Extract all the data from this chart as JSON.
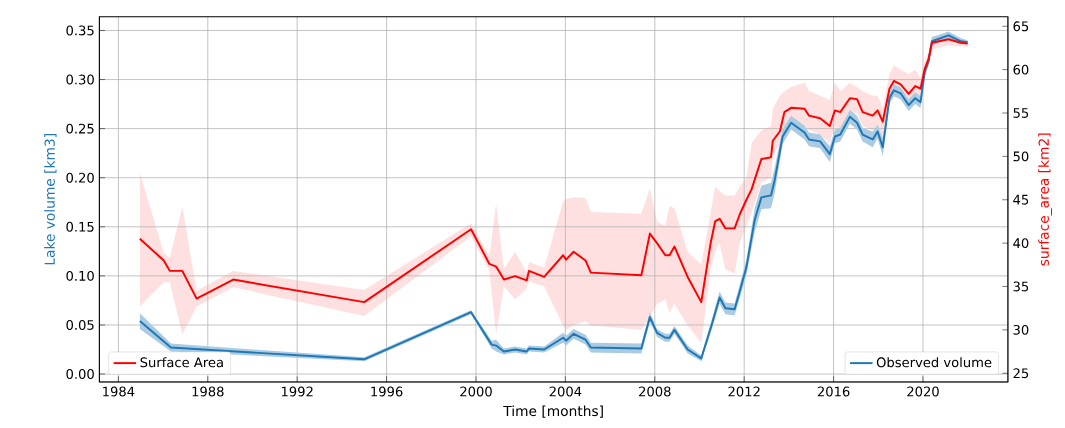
{
  "chart_data": {
    "type": "line",
    "xlabel": "Time [months]",
    "ylabel": "Lake volume [km3]",
    "y2label": "surface_area [km2]",
    "xlim": [
      1983.15,
      2023.8
    ],
    "ylim": [
      -0.008,
      0.364
    ],
    "y2lim": [
      24.0,
      66.1
    ],
    "xticks": [
      1984,
      1988,
      1992,
      1996,
      2000,
      2004,
      2008,
      2012,
      2016,
      2020
    ],
    "yticks": [
      {
        "value": 0,
        "label": "0.00"
      },
      {
        "value": 0.05,
        "label": "0.05"
      },
      {
        "value": 0.1,
        "label": "0.10"
      },
      {
        "value": 0.15,
        "label": "0.15"
      },
      {
        "value": 0.2,
        "label": "0.20"
      },
      {
        "value": 0.25,
        "label": "0.25"
      },
      {
        "value": 0.3,
        "label": "0.30"
      },
      {
        "value": 0.35,
        "label": "0.35"
      }
    ],
    "y2ticks": [
      25,
      30,
      35,
      40,
      45,
      50,
      55,
      60,
      65
    ],
    "grid": true,
    "legend": "bottom",
    "series": [
      {
        "name": "Observed volume",
        "color": "#1f77b4",
        "axis": "y",
        "x": [
          1984.96,
          1986.35,
          1995.0,
          1999.78,
          2000.7,
          2000.9,
          2001.25,
          2001.75,
          2002.27,
          2002.37,
          2003.05,
          2003.9,
          2004.03,
          2004.37,
          2004.9,
          2005.14,
          2007.4,
          2007.78,
          2008.1,
          2008.47,
          2008.66,
          2008.88,
          2009.47,
          2010.08,
          2010.57,
          2010.9,
          2011.16,
          2011.57,
          2011.8,
          2012.1,
          2012.47,
          2012.77,
          2013.2,
          2013.36,
          2013.72,
          2014.1,
          2014.7,
          2014.9,
          2015.4,
          2015.83,
          2016.06,
          2016.3,
          2016.73,
          2017.05,
          2017.3,
          2017.75,
          2017.97,
          2018.2,
          2018.5,
          2018.7,
          2019.0,
          2019.36,
          2019.65,
          2019.89,
          2020.08,
          2020.25,
          2020.4,
          2021.14,
          2021.7,
          2022.0
        ],
        "values": [
          0.054,
          0.027,
          0.015,
          0.063,
          0.03,
          0.029,
          0.023,
          0.025,
          0.023,
          0.026,
          0.025,
          0.037,
          0.034,
          0.041,
          0.035,
          0.027,
          0.026,
          0.058,
          0.042,
          0.037,
          0.037,
          0.045,
          0.025,
          0.016,
          0.052,
          0.078,
          0.067,
          0.066,
          0.084,
          0.109,
          0.157,
          0.18,
          0.182,
          0.197,
          0.242,
          0.256,
          0.246,
          0.239,
          0.237,
          0.224,
          0.242,
          0.244,
          0.262,
          0.256,
          0.244,
          0.239,
          0.247,
          0.231,
          0.281,
          0.289,
          0.286,
          0.274,
          0.281,
          0.277,
          0.308,
          0.319,
          0.339,
          0.345,
          0.339,
          0.338
        ],
        "lower": [
          0.046,
          0.023,
          0.013,
          0.061,
          0.026,
          0.023,
          0.02,
          0.022,
          0.02,
          0.023,
          0.022,
          0.032,
          0.029,
          0.036,
          0.03,
          0.022,
          0.021,
          0.053,
          0.038,
          0.033,
          0.033,
          0.041,
          0.021,
          0.013,
          0.047,
          0.072,
          0.061,
          0.06,
          0.077,
          0.101,
          0.145,
          0.168,
          0.169,
          0.184,
          0.234,
          0.249,
          0.239,
          0.232,
          0.23,
          0.216,
          0.235,
          0.237,
          0.255,
          0.249,
          0.237,
          0.231,
          0.24,
          0.222,
          0.275,
          0.283,
          0.28,
          0.268,
          0.275,
          0.271,
          0.303,
          0.314,
          0.335,
          0.341,
          0.336,
          0.336
        ],
        "upper": [
          0.062,
          0.031,
          0.017,
          0.065,
          0.034,
          0.035,
          0.026,
          0.028,
          0.026,
          0.029,
          0.028,
          0.042,
          0.039,
          0.046,
          0.04,
          0.032,
          0.031,
          0.063,
          0.046,
          0.041,
          0.041,
          0.049,
          0.029,
          0.019,
          0.057,
          0.084,
          0.073,
          0.072,
          0.091,
          0.117,
          0.169,
          0.192,
          0.195,
          0.21,
          0.25,
          0.263,
          0.253,
          0.246,
          0.244,
          0.232,
          0.249,
          0.251,
          0.269,
          0.263,
          0.251,
          0.247,
          0.254,
          0.24,
          0.287,
          0.295,
          0.292,
          0.28,
          0.287,
          0.283,
          0.313,
          0.324,
          0.343,
          0.349,
          0.342,
          0.34
        ]
      },
      {
        "name": "Surface Area",
        "color": "#ff0000",
        "axis": "y2",
        "x": [
          1984.96,
          1986.03,
          1986.3,
          1986.86,
          1987.5,
          1989.14,
          1995.0,
          1999.78,
          2000.6,
          2000.9,
          2001.25,
          2001.75,
          2002.27,
          2002.37,
          2003.05,
          2003.9,
          2004.03,
          2004.37,
          2004.9,
          2005.14,
          2007.4,
          2007.78,
          2008.1,
          2008.47,
          2008.66,
          2008.88,
          2009.47,
          2010.08,
          2010.5,
          2010.7,
          2010.9,
          2011.16,
          2011.57,
          2011.8,
          2012.1,
          2012.33,
          2012.77,
          2013.2,
          2013.28,
          2013.6,
          2013.8,
          2014.1,
          2014.7,
          2014.9,
          2015.4,
          2015.83,
          2016.06,
          2016.3,
          2016.73,
          2017.05,
          2017.3,
          2017.75,
          2017.97,
          2018.2,
          2018.5,
          2018.7,
          2019.0,
          2019.36,
          2019.65,
          2019.89,
          2020.08,
          2020.25,
          2020.4,
          2021.14,
          2021.7,
          2022.0
        ],
        "values": [
          40.5,
          38.0,
          36.8,
          36.8,
          33.6,
          35.8,
          33.2,
          41.6,
          37.6,
          37.3,
          35.8,
          36.2,
          35.7,
          36.8,
          36.1,
          38.6,
          38.1,
          39.0,
          38.0,
          36.6,
          36.3,
          41.1,
          40.0,
          38.6,
          38.6,
          39.6,
          36.1,
          33.2,
          40.0,
          42.5,
          42.8,
          41.7,
          41.7,
          43.3,
          45.0,
          46.2,
          49.7,
          49.9,
          51.8,
          52.9,
          55.1,
          55.6,
          55.5,
          54.7,
          54.4,
          53.5,
          55.3,
          55.1,
          56.7,
          56.6,
          55.1,
          54.7,
          55.3,
          54.0,
          57.8,
          58.7,
          58.3,
          57.2,
          58.1,
          57.8,
          60.1,
          61.2,
          63.1,
          63.5,
          63.1,
          63.0
        ],
        "lower": [
          32.7,
          35.5,
          35.5,
          29.5,
          32.7,
          34.9,
          31.6,
          40.8,
          36.8,
          29.5,
          35.0,
          33.5,
          34.8,
          35.6,
          35.0,
          30.5,
          30.0,
          30.5,
          31.0,
          30.5,
          30.0,
          31.5,
          33.0,
          33.5,
          32.0,
          33.0,
          30.5,
          28.5,
          37.0,
          39.0,
          40.0,
          37.0,
          36.5,
          40.0,
          42.0,
          43.5,
          47.0,
          47.5,
          50.0,
          51.5,
          52.5,
          53.0,
          53.5,
          53.0,
          52.5,
          51.5,
          53.5,
          53.0,
          55.0,
          55.0,
          53.5,
          53.0,
          53.5,
          52.0,
          56.0,
          57.0,
          56.5,
          55.5,
          56.5,
          56.5,
          59.5,
          60.5,
          62.3,
          62.8,
          62.7,
          62.6
        ],
        "upper": [
          48.1,
          38.9,
          38.3,
          44.2,
          34.5,
          36.8,
          34.6,
          42.3,
          38.5,
          44.5,
          37.0,
          39.0,
          36.6,
          37.8,
          37.2,
          44.8,
          45.1,
          45.3,
          45.2,
          43.6,
          43.4,
          46.3,
          42.5,
          42.0,
          44.3,
          44.0,
          39.0,
          37.5,
          43.5,
          46.5,
          46.0,
          45.5,
          45.5,
          46.5,
          47.5,
          51.5,
          53.0,
          53.5,
          55.5,
          57.0,
          57.5,
          58.0,
          58.5,
          57.5,
          57.0,
          56.5,
          58.5,
          57.5,
          58.5,
          58.0,
          57.5,
          57.0,
          57.0,
          55.5,
          59.5,
          60.5,
          60.0,
          59.5,
          60.0,
          59.0,
          61.0,
          62.0,
          63.9,
          64.0,
          63.5,
          63.3
        ]
      }
    ]
  }
}
